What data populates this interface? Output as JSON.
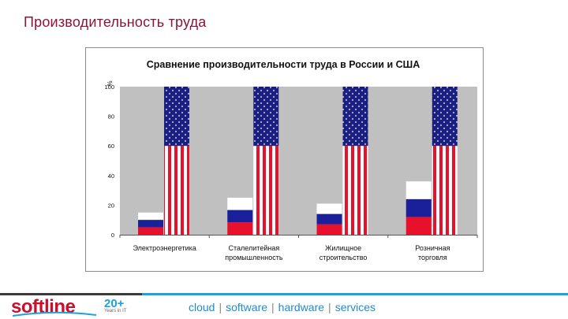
{
  "slide": {
    "title": "Производительность труда"
  },
  "footer": {
    "logo_text": "softline",
    "logo_badge": "20+",
    "logo_sub": "Years in IT",
    "tagline": [
      "cloud",
      "software",
      "hardware",
      "services"
    ],
    "colors": {
      "accent_red": "#c8102e",
      "accent_blue": "#1aa3d9",
      "title": "#8a1538"
    }
  },
  "chart_data": {
    "type": "bar",
    "title": "Сравнение производительности труда в России и США",
    "ylabel": "%",
    "ylim": [
      0,
      100
    ],
    "yticks": [
      "0",
      "20",
      "40",
      "60",
      "80",
      "100"
    ],
    "grid": false,
    "plot_background": "#c0c0c0",
    "categories": [
      "Электроэнергетика",
      "Сталелитейная промышленность",
      "Жилищное строительство",
      "Розничная торговля"
    ],
    "series": [
      {
        "values": [
          15,
          25,
          21,
          36
        ],
        "style": "russian-flag"
      },
      {
        "values": [
          100,
          100,
          100,
          100
        ],
        "style": "us-flag"
      }
    ]
  }
}
